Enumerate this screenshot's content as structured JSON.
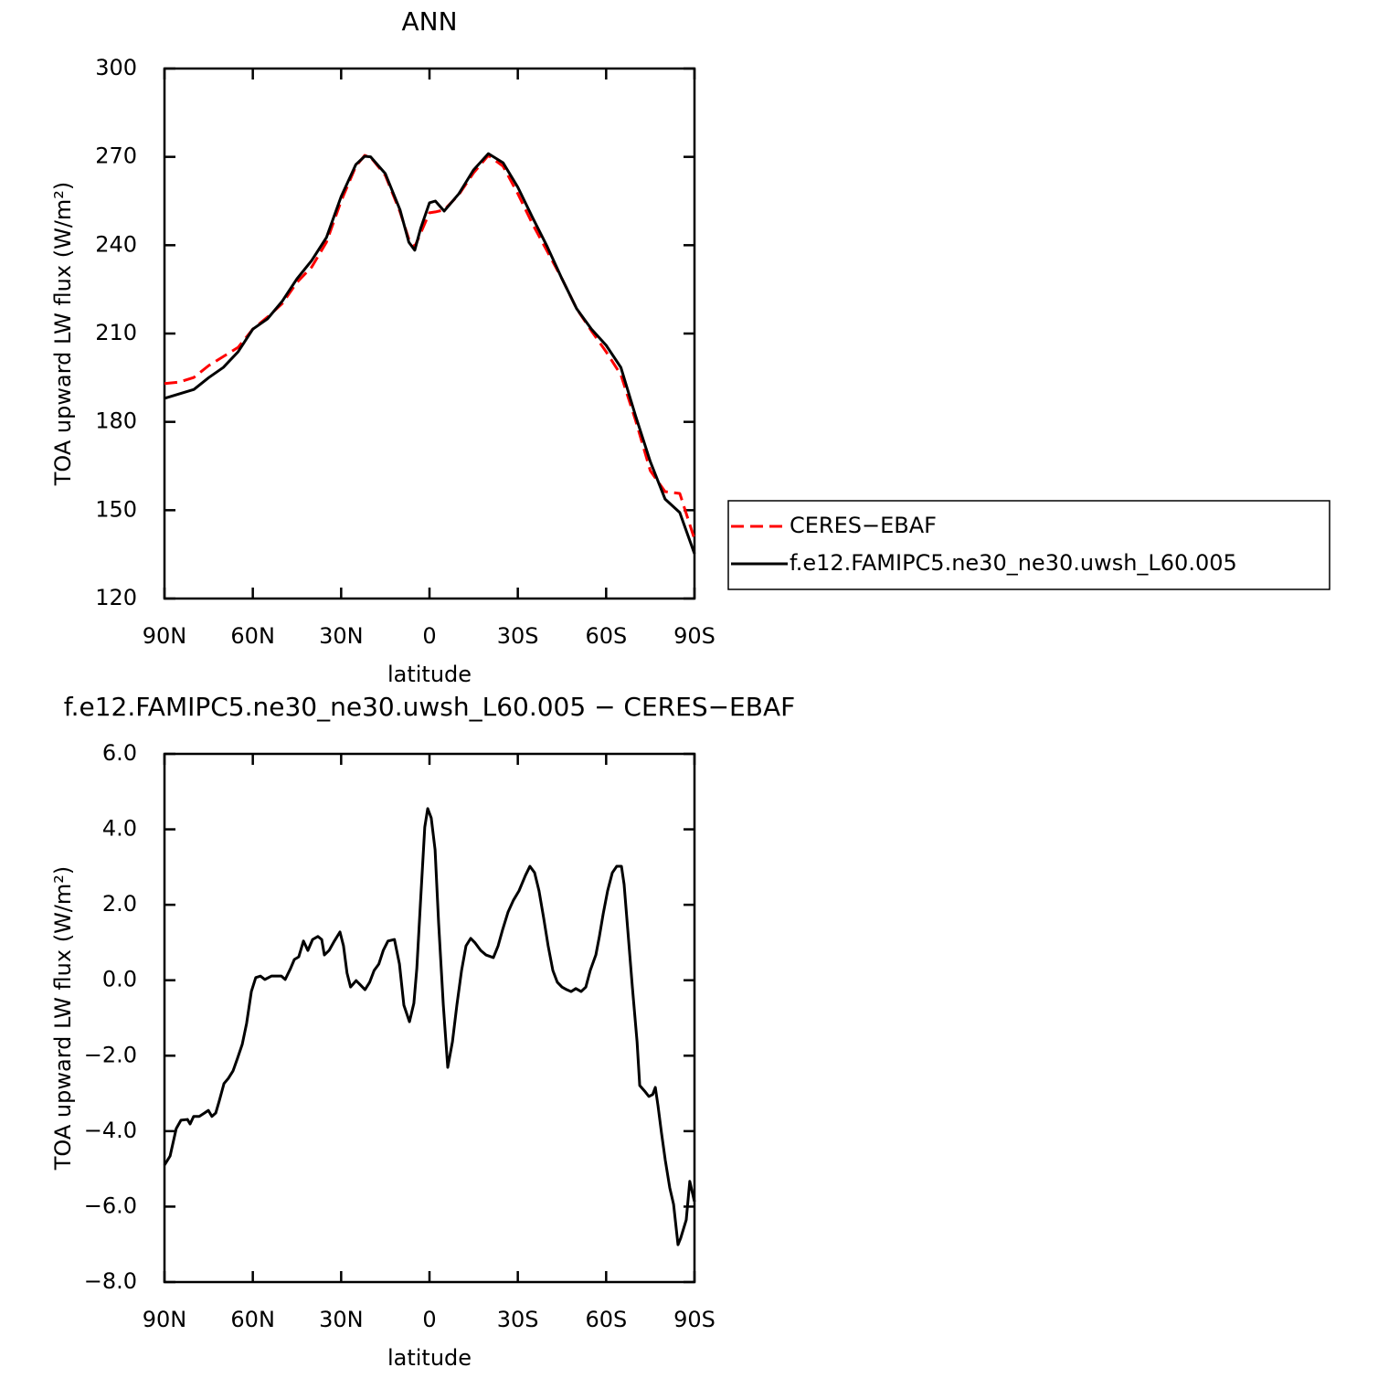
{
  "chart_data": [
    {
      "type": "line",
      "title": "ANN",
      "x_label": "latitude",
      "y_label": "TOA upward LW flux (W/m²)",
      "x": [
        90,
        85,
        80,
        75,
        70,
        65,
        60,
        55,
        50,
        45,
        40,
        35,
        30,
        25,
        22,
        20,
        15,
        10,
        7,
        5,
        3,
        0,
        -2,
        -5,
        -10,
        -15,
        -20,
        -25,
        -30,
        -35,
        -40,
        -45,
        -50,
        -55,
        -60,
        -65,
        -70,
        -75,
        -80,
        -85,
        -90
      ],
      "series": [
        {
          "name": "CERES−EBAF",
          "color": "#ff0000",
          "dashed": true,
          "values": [
            193,
            193.5,
            195.1,
            199.1,
            202.2,
            205.3,
            211.5,
            215.6,
            220.2,
            227.4,
            232.6,
            241,
            255,
            266.8,
            270.5,
            269.9,
            263.7,
            251.3,
            242,
            239.5,
            244.1,
            251,
            251.3,
            252,
            257.2,
            264.6,
            270.5,
            266.8,
            257.5,
            247.2,
            237.9,
            228.6,
            218.4,
            210.9,
            203.8,
            196,
            180.5,
            163.4,
            156.3,
            155.7,
            140.2
          ]
        },
        {
          "name": "f.e12.FAMIPC5.ne30_ne30.uwsh_L60.005",
          "color": "#000000",
          "dashed": false,
          "values": [
            188,
            189.5,
            191,
            195,
            198.5,
            203.8,
            211.5,
            215,
            221,
            228.6,
            234.8,
            242.6,
            256.5,
            267.4,
            270.2,
            270,
            264.3,
            252,
            241,
            238.3,
            245.7,
            254.4,
            255,
            251.6,
            257.5,
            265.6,
            271.1,
            268,
            259.7,
            249.4,
            239.5,
            228.6,
            218.4,
            211.5,
            206,
            198.5,
            182,
            166.5,
            153.8,
            149.2,
            135.2
          ]
        }
      ],
      "xlim": [
        90,
        -90
      ],
      "xticks": [
        {
          "value": 90,
          "label": "90N"
        },
        {
          "value": 60,
          "label": "60N"
        },
        {
          "value": 30,
          "label": "30N"
        },
        0,
        {
          "value": -30,
          "label": "30S"
        },
        {
          "value": -60,
          "label": "60S"
        },
        {
          "value": -90,
          "label": "90S"
        }
      ],
      "ylim": [
        120,
        300
      ],
      "yticks": [
        120,
        150,
        180,
        210,
        240,
        270,
        300
      ],
      "legend": "outside-right"
    },
    {
      "type": "line",
      "title": "f.e12.FAMIPC5.ne30_ne30.uwsh_L60.005 − CERES−EBAF",
      "x_label": "latitude",
      "y_label": "TOA upward LW flux (W/m²)",
      "x": [
        90,
        88.1,
        86.0,
        84.4,
        82.2,
        81.3,
        80.1,
        78.2,
        76.4,
        75.1,
        73.9,
        72.6,
        71.4,
        69.8,
        68.3,
        66.7,
        65.2,
        63.6,
        62.1,
        60.5,
        59.0,
        57.4,
        55.9,
        53.7,
        52.1,
        50.3,
        49.0,
        47.2,
        45.9,
        44.4,
        42.8,
        41.3,
        39.7,
        37.9,
        36.6,
        35.7,
        34.1,
        32.3,
        30.4,
        29.2,
        28.0,
        26.8,
        24.9,
        23.4,
        21.9,
        20.3,
        18.8,
        17.2,
        15.7,
        14.1,
        11.9,
        10.2,
        8.7,
        6.8,
        5.3,
        4.3,
        3.1,
        1.6,
        0.6,
        -0.6,
        -1.9,
        -3.1,
        -4.7,
        -6.2,
        -7.8,
        -9.3,
        -10.9,
        -12.4,
        -14.0,
        -15.5,
        -17.4,
        -19.2,
        -21.7,
        -23.3,
        -24.8,
        -26.7,
        -28.5,
        -30.4,
        -32.6,
        -34.1,
        -35.7,
        -37.2,
        -38.8,
        -40.3,
        -41.9,
        -43.4,
        -45.0,
        -46.6,
        -48.1,
        -49.7,
        -51.5,
        -53.1,
        -54.6,
        -56.5,
        -57.7,
        -59.0,
        -60.5,
        -62.1,
        -63.6,
        -65.2,
        -66.1,
        -67.4,
        -68.9,
        -70.5,
        -71.4,
        -73.3,
        -74.5,
        -75.8,
        -76.7,
        -77.6,
        -78.8,
        -80.1,
        -81.6,
        -82.9,
        -84.4,
        -85.3,
        -87.2,
        -88.4,
        -90
      ],
      "values": [
        -4.9,
        -4.66,
        -3.93,
        -3.71,
        -3.69,
        -3.81,
        -3.61,
        -3.61,
        -3.52,
        -3.45,
        -3.61,
        -3.52,
        -3.2,
        -2.74,
        -2.6,
        -2.4,
        -2.07,
        -1.7,
        -1.14,
        -0.3,
        0.07,
        0.11,
        0.02,
        0.11,
        0.11,
        0.11,
        0.02,
        0.31,
        0.55,
        0.62,
        1.04,
        0.79,
        1.08,
        1.16,
        1.08,
        0.67,
        0.79,
        1.04,
        1.28,
        0.91,
        0.19,
        -0.18,
        -0.01,
        -0.13,
        -0.25,
        -0.05,
        0.26,
        0.43,
        0.79,
        1.04,
        1.08,
        0.43,
        -0.66,
        -1.1,
        -0.61,
        0.31,
        2.0,
        4.06,
        4.55,
        4.3,
        3.46,
        1.52,
        -0.66,
        -2.31,
        -1.63,
        -0.66,
        0.26,
        0.91,
        1.11,
        0.99,
        0.79,
        0.67,
        0.6,
        0.91,
        1.33,
        1.81,
        2.12,
        2.37,
        2.78,
        3.02,
        2.85,
        2.37,
        1.64,
        0.91,
        0.26,
        -0.05,
        -0.18,
        -0.25,
        -0.3,
        -0.22,
        -0.3,
        -0.18,
        0.26,
        0.67,
        1.16,
        1.76,
        2.37,
        2.85,
        3.02,
        3.02,
        2.54,
        1.28,
        -0.18,
        -1.63,
        -2.79,
        -2.96,
        -3.08,
        -3.03,
        -2.84,
        -3.32,
        -4.05,
        -4.78,
        -5.5,
        -5.94,
        -7.01,
        -6.84,
        -6.35,
        -5.33,
        -5.87
      ],
      "color": "#000000",
      "xlim": [
        90,
        -90
      ],
      "xticks": [
        {
          "value": 90,
          "label": "90N"
        },
        {
          "value": 60,
          "label": "60N"
        },
        {
          "value": 30,
          "label": "30N"
        },
        0,
        {
          "value": -30,
          "label": "30S"
        },
        {
          "value": -60,
          "label": "60S"
        },
        {
          "value": -90,
          "label": "90S"
        }
      ],
      "ylim": [
        -8,
        6
      ],
      "yticks": [
        {
          "value": -8,
          "label": "−8.0"
        },
        {
          "value": -6,
          "label": "−6.0"
        },
        {
          "value": -4,
          "label": "−4.0"
        },
        {
          "value": -2,
          "label": "−2.0"
        },
        {
          "value": 0,
          "label": "0.0"
        },
        {
          "value": 2,
          "label": "2.0"
        },
        {
          "value": 4,
          "label": "4.0"
        },
        {
          "value": 6,
          "label": "6.0"
        }
      ]
    }
  ]
}
